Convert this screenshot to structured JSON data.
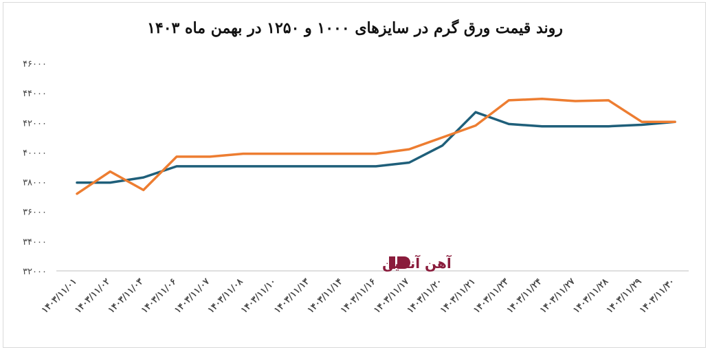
{
  "chart_data": {
    "type": "line",
    "title": "روند قیمت ورق گرم در سایزهای ۱۰۰۰ و ۱۲۵۰ در بهمن ماه ۱۴۰۳",
    "xlabel": "",
    "ylabel": "",
    "categories": [
      "۱۴۰۳/۱۱/۰۱",
      "۱۴۰۳/۱۱/۰۲",
      "۱۴۰۳/۱۱/۰۳",
      "۱۴۰۳/۱۱/۰۶",
      "۱۴۰۳/۱۱/۰۷",
      "۱۴۰۳/۱۱/۰۸",
      "۱۴۰۳/۱۱/۱۰",
      "۱۴۰۳/۱۱/۱۳",
      "۱۴۰۳/۱۱/۱۴",
      "۱۴۰۳/۱۱/۱۶",
      "۱۴۰۳/۱۱/۱۷",
      "۱۴۰۳/۱۱/۲۰",
      "۱۴۰۳/۱۱/۲۱",
      "۱۴۰۳/۱۱/۲۳",
      "۱۴۰۳/۱۱/۲۴",
      "۱۴۰۳/۱۱/۲۷",
      "۱۴۰۳/۱۱/۲۸",
      "۱۴۰۳/۱۱/۲۹",
      "۱۴۰۳/۱۱/۳۰"
    ],
    "ylim": [
      32000,
      46000
    ],
    "yticks": [
      32000,
      34000,
      36000,
      38000,
      40000,
      42000,
      44000,
      46000
    ],
    "ytick_labels": [
      "۳۲۰۰۰",
      "۳۴۰۰۰",
      "۳۶۰۰۰",
      "۳۸۰۰۰",
      "۴۰۰۰۰",
      "۴۲۰۰۰",
      "۴۴۰۰۰",
      "۴۶۰۰۰"
    ],
    "grid": false,
    "legend": "none",
    "series": [
      {
        "color": "#1f5f7a",
        "values": [
          37950,
          37950,
          38300,
          39050,
          39050,
          39050,
          39050,
          39050,
          39050,
          39050,
          39300,
          40450,
          42700,
          41900,
          41750,
          41750,
          41750,
          41850,
          42050
        ]
      },
      {
        "color": "#ed7d31",
        "values": [
          37200,
          38700,
          37450,
          39700,
          39700,
          39900,
          39900,
          39900,
          39900,
          39900,
          40200,
          41000,
          41800,
          43500,
          43600,
          43450,
          43500,
          42050,
          42050
        ]
      }
    ]
  },
  "watermark": {
    "text": "آهن آنلاین",
    "color": "#8a1c3c"
  }
}
